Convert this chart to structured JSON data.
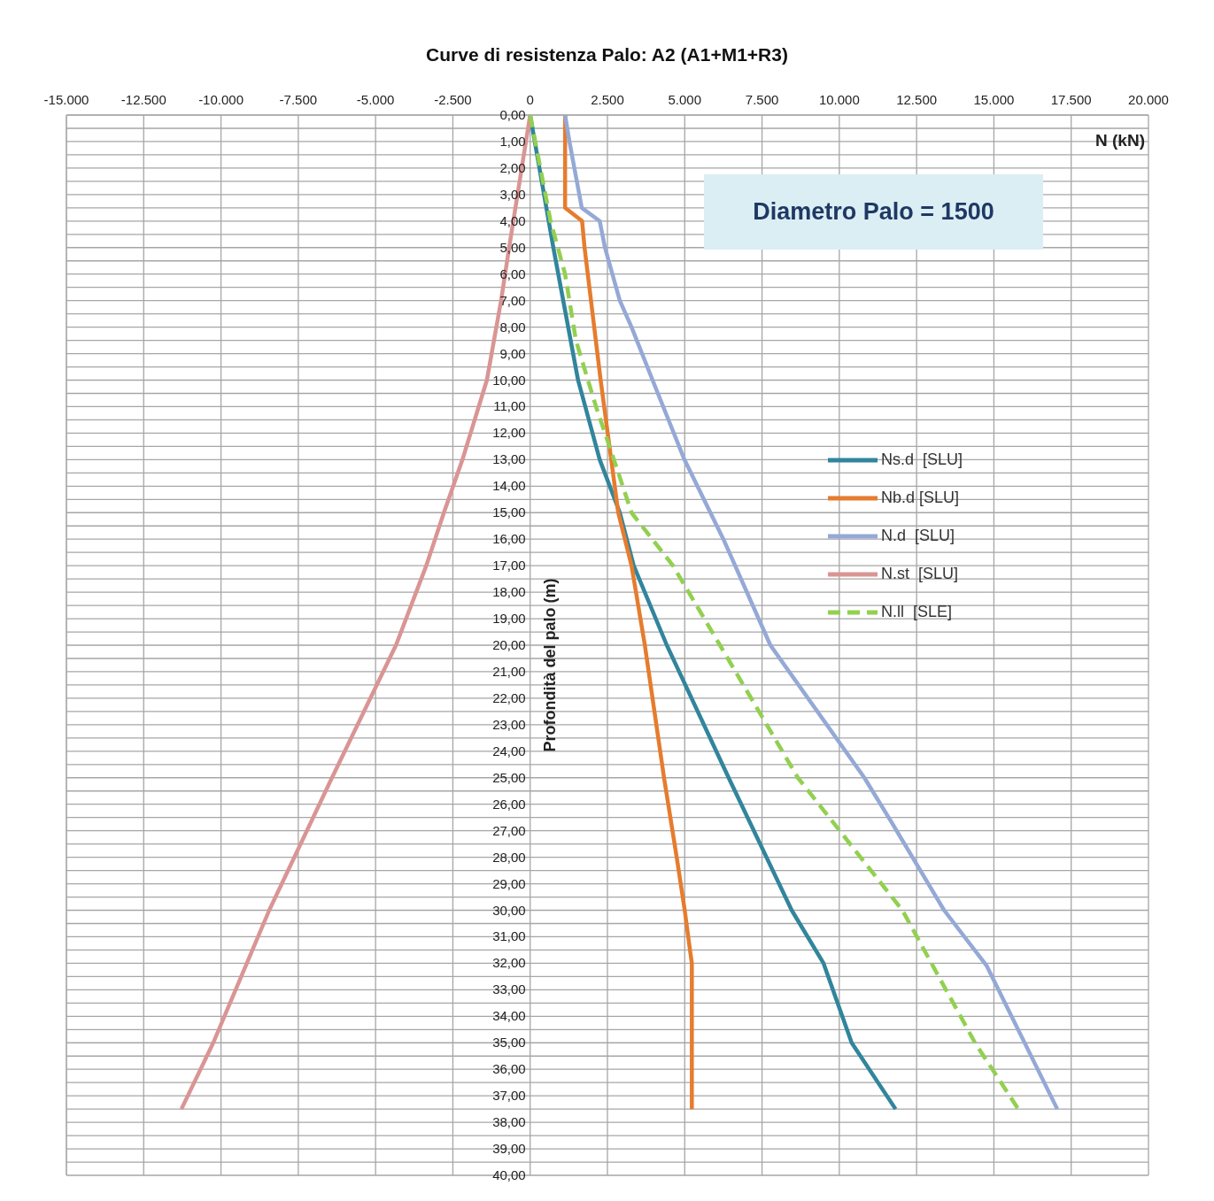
{
  "chart_data": {
    "type": "line",
    "title": "Curve di resistenza Palo: A2 (A1+M1+R3)",
    "xlabel": "N (kN)",
    "ylabel": "Profondità del palo (m)",
    "annotations": [
      "Diametro Palo = 1500"
    ],
    "xlim": [
      -15000,
      20000
    ],
    "xticks": [
      {
        "value": -15000,
        "label": "-15.000"
      },
      {
        "value": -12500,
        "label": "-12.500"
      },
      {
        "value": -10000,
        "label": "-10.000"
      },
      {
        "value": -7500,
        "label": "-7.500"
      },
      {
        "value": -5000,
        "label": "-5.000"
      },
      {
        "value": -2500,
        "label": "-2.500"
      },
      0,
      {
        "value": 2500,
        "label": "2.500"
      },
      {
        "value": 5000,
        "label": "5.000"
      },
      {
        "value": 7500,
        "label": "7.500"
      },
      {
        "value": 10000,
        "label": "10.000"
      },
      {
        "value": 12500,
        "label": "12.500"
      },
      {
        "value": 15000,
        "label": "15.000"
      },
      {
        "value": 17500,
        "label": "17.500"
      },
      {
        "value": 20000,
        "label": "20.000"
      }
    ],
    "ylim": [
      40,
      0
    ],
    "yticks": [
      {
        "value": 0,
        "label": "0,00"
      },
      {
        "value": 0.5,
        "label": null
      },
      {
        "value": 1,
        "label": "1,00"
      },
      {
        "value": 1.5,
        "label": null
      },
      {
        "value": 2,
        "label": "2,00"
      },
      {
        "value": 2.5,
        "label": null
      },
      {
        "value": 3,
        "label": "3,00"
      },
      {
        "value": 3.5,
        "label": null
      },
      {
        "value": 4,
        "label": "4,00"
      },
      {
        "value": 4.5,
        "label": null
      },
      {
        "value": 5,
        "label": "5,00"
      },
      {
        "value": 5.5,
        "label": null
      },
      {
        "value": 6,
        "label": "6,00"
      },
      {
        "value": 6.5,
        "label": null
      },
      {
        "value": 7,
        "label": "7,00"
      },
      {
        "value": 7.5,
        "label": null
      },
      {
        "value": 8,
        "label": "8,00"
      },
      {
        "value": 8.5,
        "label": null
      },
      {
        "value": 9,
        "label": "9,00"
      },
      {
        "value": 9.5,
        "label": null
      },
      {
        "value": 10,
        "label": "10,00"
      },
      {
        "value": 10.5,
        "label": null
      },
      {
        "value": 11,
        "label": "11,00"
      },
      {
        "value": 11.5,
        "label": null
      },
      {
        "value": 12,
        "label": "12,00"
      },
      {
        "value": 12.5,
        "label": null
      },
      {
        "value": 13,
        "label": "13,00"
      },
      {
        "value": 13.5,
        "label": null
      },
      {
        "value": 14,
        "label": "14,00"
      },
      {
        "value": 14.5,
        "label": null
      },
      {
        "value": 15,
        "label": "15,00"
      },
      {
        "value": 15.5,
        "label": null
      },
      {
        "value": 16,
        "label": "16,00"
      },
      {
        "value": 16.5,
        "label": null
      },
      {
        "value": 17,
        "label": "17,00"
      },
      {
        "value": 17.5,
        "label": null
      },
      {
        "value": 18,
        "label": "18,00"
      },
      {
        "value": 18.5,
        "label": null
      },
      {
        "value": 19,
        "label": "19,00"
      },
      {
        "value": 19.5,
        "label": null
      },
      {
        "value": 20,
        "label": "20,00"
      },
      {
        "value": 20.5,
        "label": null
      },
      {
        "value": 21,
        "label": "21,00"
      },
      {
        "value": 21.5,
        "label": null
      },
      {
        "value": 22,
        "label": "22,00"
      },
      {
        "value": 22.5,
        "label": null
      },
      {
        "value": 23,
        "label": "23,00"
      },
      {
        "value": 23.5,
        "label": null
      },
      {
        "value": 24,
        "label": "24,00"
      },
      {
        "value": 24.5,
        "label": null
      },
      {
        "value": 25,
        "label": "25,00"
      },
      {
        "value": 25.5,
        "label": null
      },
      {
        "value": 26,
        "label": "26,00"
      },
      {
        "value": 26.5,
        "label": null
      },
      {
        "value": 27,
        "label": "27,00"
      },
      {
        "value": 27.5,
        "label": null
      },
      {
        "value": 28,
        "label": "28,00"
      },
      {
        "value": 28.5,
        "label": null
      },
      {
        "value": 29,
        "label": "29,00"
      },
      {
        "value": 29.5,
        "label": null
      },
      {
        "value": 30,
        "label": "30,00"
      },
      {
        "value": 30.5,
        "label": null
      },
      {
        "value": 31,
        "label": "31,00"
      },
      {
        "value": 31.5,
        "label": null
      },
      {
        "value": 32,
        "label": "32,00"
      },
      {
        "value": 32.5,
        "label": null
      },
      {
        "value": 33,
        "label": "33,00"
      },
      {
        "value": 33.5,
        "label": null
      },
      {
        "value": 34,
        "label": "34,00"
      },
      {
        "value": 34.5,
        "label": null
      },
      {
        "value": 35,
        "label": "35,00"
      },
      {
        "value": 35.5,
        "label": null
      },
      {
        "value": 36,
        "label": "36,00"
      },
      {
        "value": 36.5,
        "label": null
      },
      {
        "value": 37,
        "label": "37,00"
      },
      {
        "value": 37.5,
        "label": null
      },
      {
        "value": 38,
        "label": "38,00"
      },
      {
        "value": 38.5,
        "label": null
      },
      {
        "value": 39,
        "label": "39,00"
      },
      {
        "value": 39.5,
        "label": null
      },
      {
        "value": 40,
        "label": "40,00"
      }
    ],
    "grid": true,
    "legend": "right",
    "marker": "none",
    "series": [
      {
        "name": "Ns.d  [SLU]",
        "color": "#31859c",
        "line_style": "solid",
        "x": [
          0,
          750,
          1550,
          2250,
          2900,
          3350,
          4420,
          6420,
          8460,
          9490,
          10400,
          11820
        ],
        "values": [
          0,
          5,
          10,
          13,
          15,
          17,
          20,
          25,
          30,
          32,
          35,
          37.5
        ]
      },
      {
        "name": "Nb.d [SLU]",
        "color": "#e67c2d",
        "line_style": "solid",
        "x": [
          1130,
          1130,
          1680,
          1760,
          2280,
          2850,
          3280,
          3710,
          4330,
          4740,
          5000,
          5170,
          5230,
          5230
        ],
        "values": [
          0,
          3.5,
          4,
          5,
          10,
          15,
          17,
          20,
          25,
          28,
          30,
          31.5,
          32,
          37.5
        ]
      },
      {
        "name": "N.d  [SLU]",
        "color": "#95a9d6",
        "line_style": "solid",
        "x": [
          1130,
          1270,
          1670,
          2250,
          2420,
          2900,
          3280,
          3960,
          4990,
          6250,
          7770,
          10810,
          11700,
          13390,
          14770,
          17050
        ],
        "values": [
          0,
          1,
          3.5,
          4,
          5,
          7,
          8,
          10,
          13,
          16,
          20,
          25,
          26.7,
          30,
          32.1,
          37.5
        ]
      },
      {
        "name": "N.st  [SLU]",
        "color": "#d99594",
        "line_style": "solid",
        "x": [
          0,
          -680,
          -940,
          -1400,
          -2190,
          -2790,
          -3360,
          -4340,
          -6410,
          -8440,
          -10250,
          -11280
        ],
        "values": [
          0,
          5,
          7,
          10,
          13,
          15,
          17,
          20,
          25,
          30,
          35,
          37.5
        ]
      },
      {
        "name": "N.ll  [SLE]",
        "color": "#92d050",
        "line_style": "dashed",
        "x": [
          0,
          330,
          660,
          1130,
          1480,
          2130,
          2710,
          3280,
          4620,
          6140,
          8660,
          12040,
          14390,
          15790
        ],
        "values": [
          0,
          2,
          4,
          6,
          8.5,
          11,
          13,
          15,
          17,
          20,
          25,
          30,
          35,
          37.5
        ]
      }
    ]
  }
}
